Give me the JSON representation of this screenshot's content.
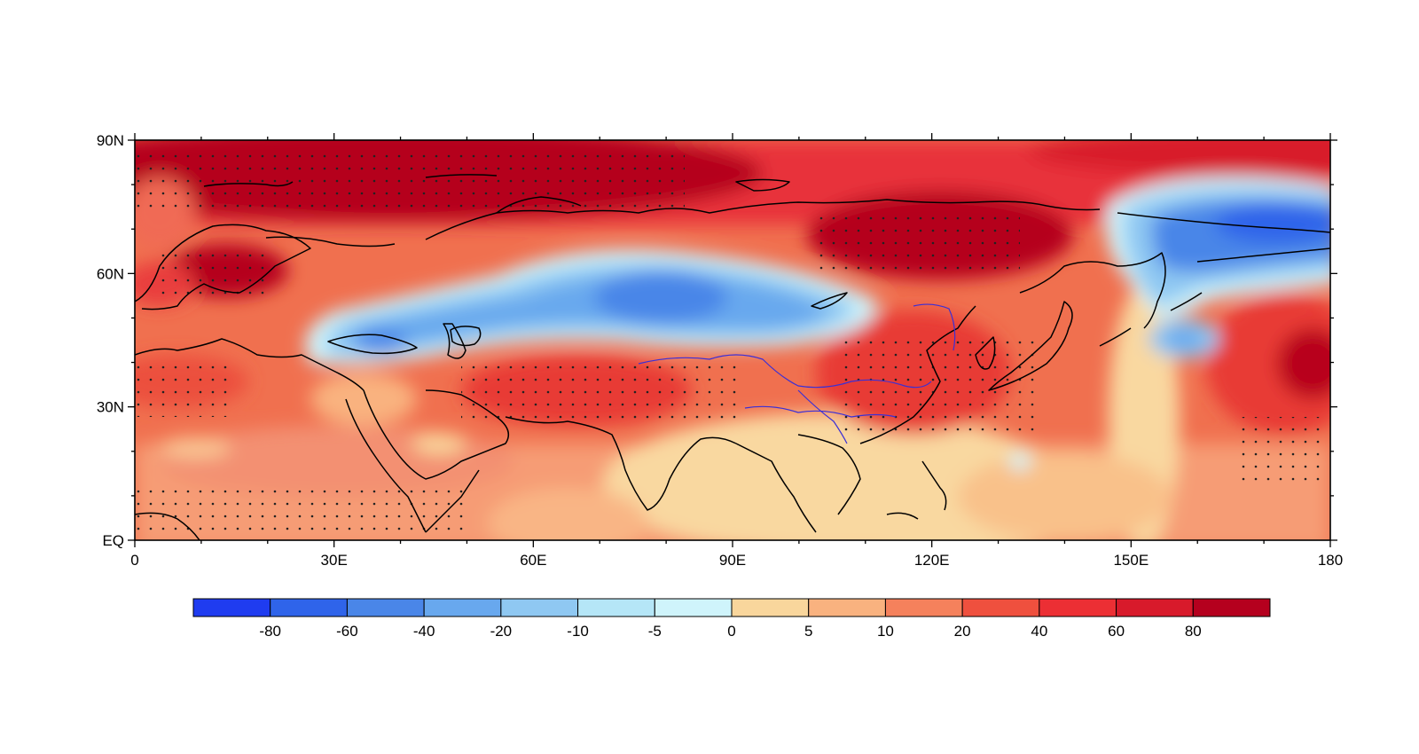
{
  "map": {
    "lon_range": [
      0,
      180
    ],
    "lat_range": [
      0,
      90
    ],
    "x_ticks": [
      "0",
      "30E",
      "60E",
      "90E",
      "120E",
      "150E",
      "180"
    ],
    "y_ticks": [
      "EQ",
      "30N",
      "60N",
      "90N"
    ],
    "stippling": "dots mark significant areas",
    "coastline_color": "#000000",
    "river_color": "#3b2fd6"
  },
  "colorbar": {
    "labels": [
      "-80",
      "-60",
      "-40",
      "-20",
      "-10",
      "-5",
      "0",
      "5",
      "10",
      "20",
      "40",
      "60",
      "80"
    ],
    "colors": [
      "#1f3cf0",
      "#2f64ea",
      "#4a86e8",
      "#68a8ee",
      "#8fc8f2",
      "#b5e6f7",
      "#cff4fb",
      "#f9d69c",
      "#f9b27f",
      "#f5815c",
      "#ef503e",
      "#ec2f34",
      "#d81a2b",
      "#b5001e"
    ]
  }
}
